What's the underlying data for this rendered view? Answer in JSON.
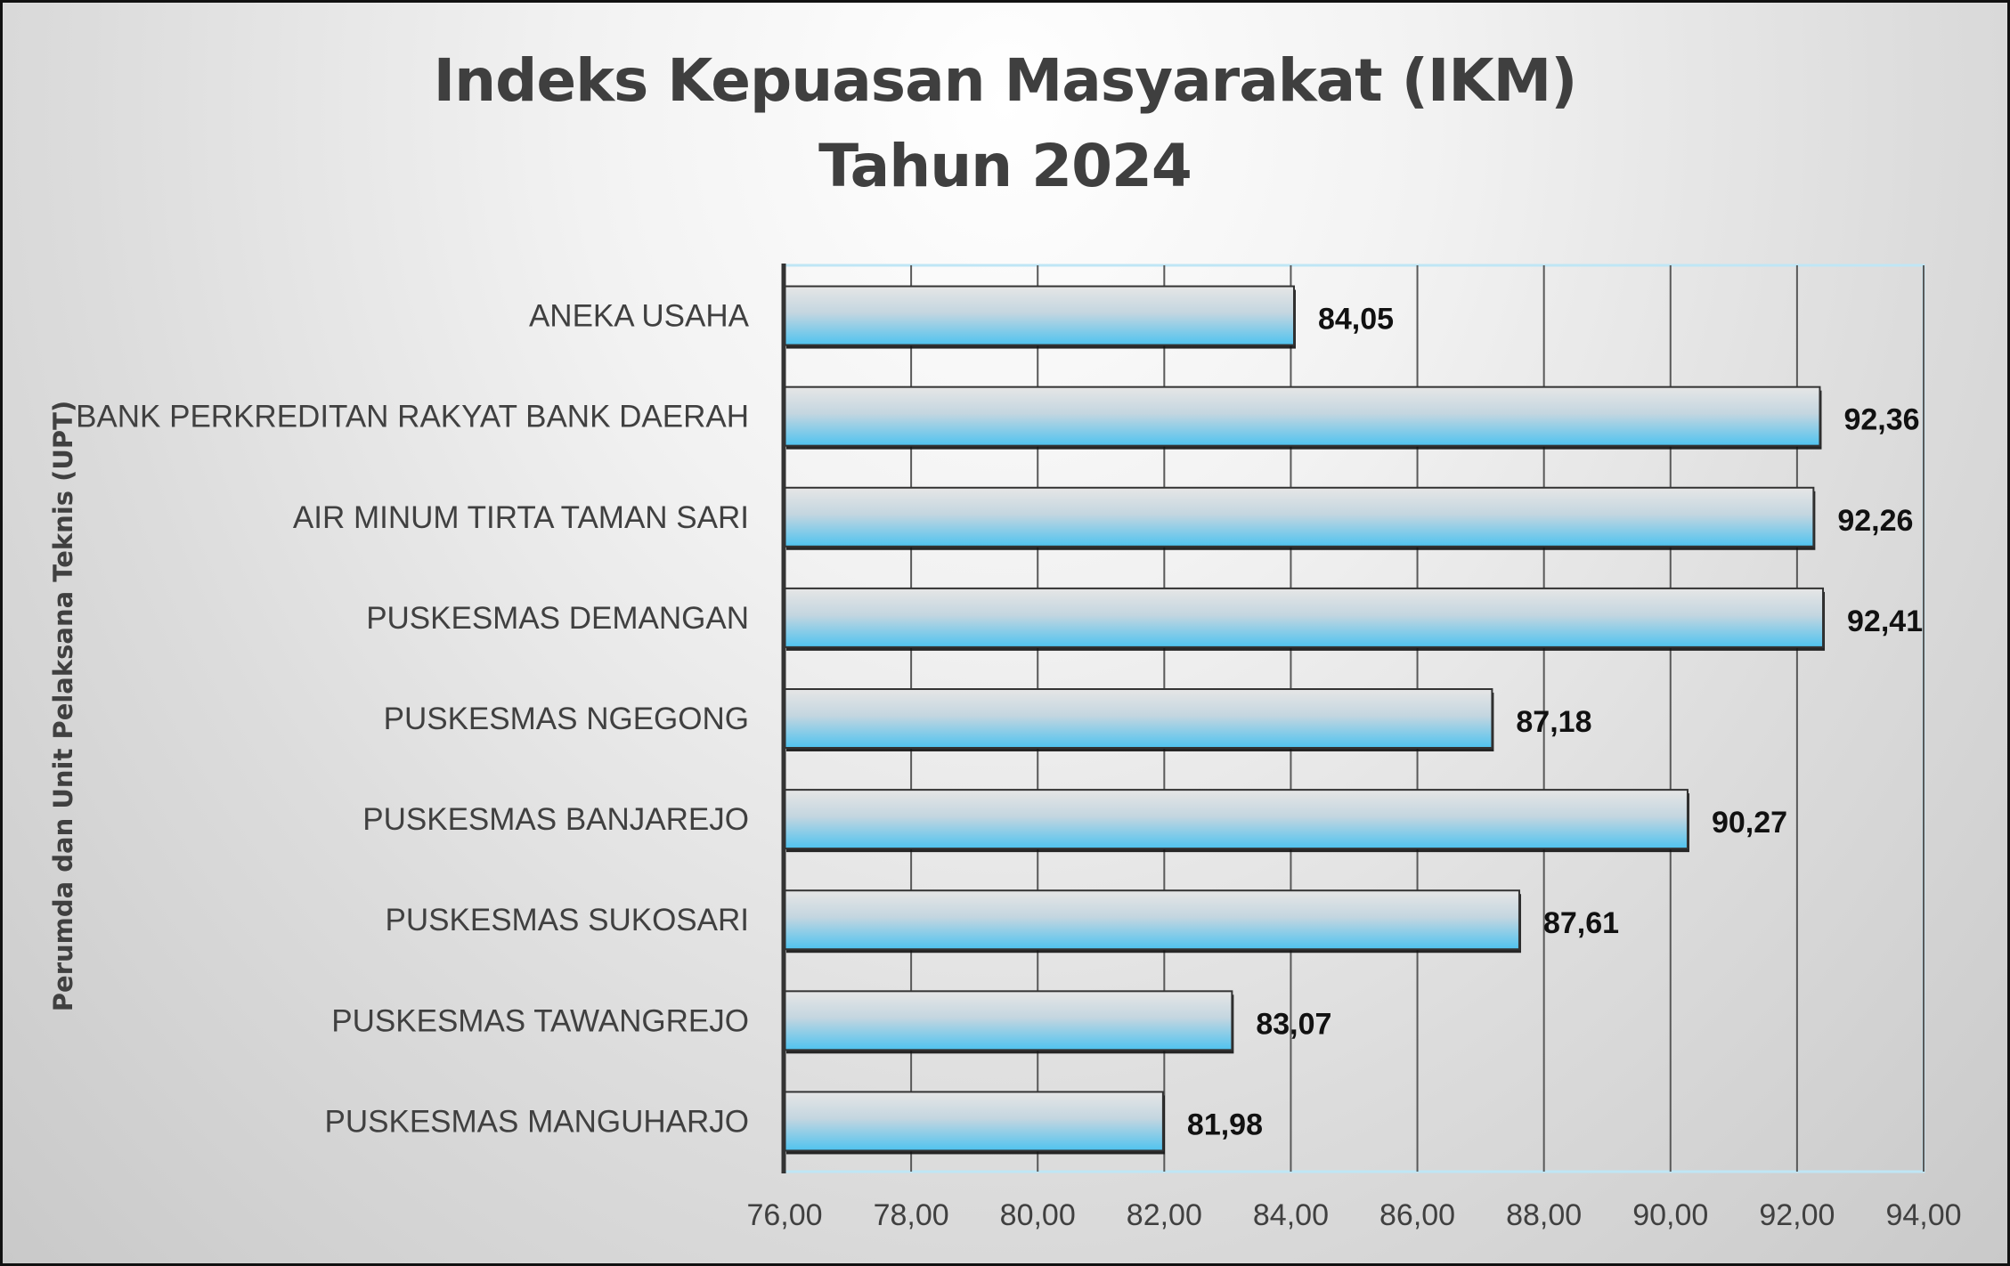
{
  "chart_data": {
    "type": "bar",
    "orientation": "horizontal",
    "title_line1": "Indeks Kepuasan Masyarakat (IKM)",
    "title_line2": "Tahun 2024",
    "ylabel": "Perumda dan Unit Pelaksana Teknis (UPT)",
    "xlabel": "",
    "categories": [
      "ANEKA USAHA",
      "BANK PERKREDITAN RAKYAT BANK DAERAH",
      "AIR MINUM TIRTA TAMAN SARI",
      "PUSKESMAS DEMANGAN",
      "PUSKESMAS NGEGONG",
      "PUSKESMAS BANJAREJO",
      "PUSKESMAS SUKOSARI",
      "PUSKESMAS TAWANGREJO",
      "PUSKESMAS MANGUHARJO"
    ],
    "values": [
      84.05,
      92.36,
      92.26,
      92.41,
      87.18,
      90.27,
      87.61,
      83.07,
      81.98
    ],
    "value_labels": [
      "84,05",
      "92,36",
      "92,26",
      "92,41",
      "87,18",
      "90,27",
      "87,61",
      "83,07",
      "81,98"
    ],
    "xlim": [
      76,
      94
    ],
    "x_ticks": [
      76,
      78,
      80,
      82,
      84,
      86,
      88,
      90,
      92,
      94
    ],
    "x_tick_labels": [
      "76,00",
      "78,00",
      "80,00",
      "82,00",
      "84,00",
      "86,00",
      "88,00",
      "90,00",
      "92,00",
      "94,00"
    ],
    "grid": "vertical",
    "legend": "none",
    "colors": {
      "bar_top": "#d9d9d9",
      "bar_bottom": "#4fc3ef",
      "bar_edge": "#333333",
      "plot_border": "#bfe6f5",
      "grid": "#595959",
      "axis": "#333333"
    }
  }
}
